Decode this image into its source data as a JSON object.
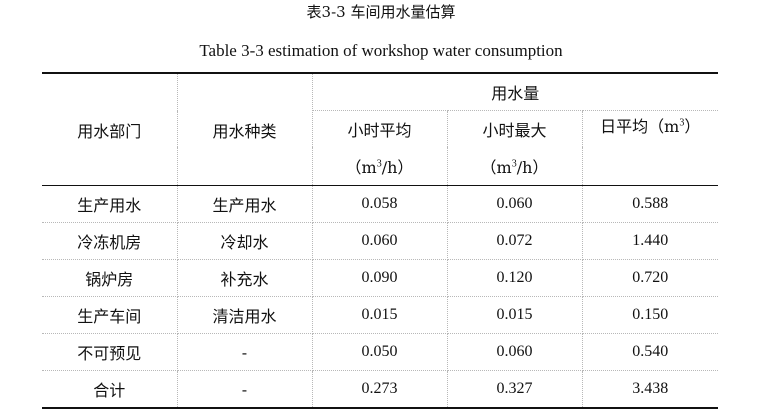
{
  "caption": {
    "chinese": "表3-3 车间用水量估算",
    "english": "Table 3-3 estimation of workshop water consumption"
  },
  "table": {
    "header": {
      "department": "用水部门",
      "water_type": "用水种类",
      "consumption_group": "用水量",
      "hourly_avg": "小时平均",
      "hourly_avg_unit_open": "（m",
      "hourly_avg_unit_sup": "3",
      "hourly_avg_unit_close": "/h）",
      "hourly_max": "小时最大",
      "hourly_max_unit_open": "（m",
      "hourly_max_unit_sup": "3",
      "hourly_max_unit_close": "/h）",
      "daily_avg": "日平均（m",
      "daily_avg_sup": "3",
      "daily_avg_close": "）"
    },
    "rows": [
      {
        "department": "生产用水",
        "water_type": "生产用水",
        "hourly_avg": "0.058",
        "hourly_max": "0.060",
        "daily_avg": "0.588"
      },
      {
        "department": "冷冻机房",
        "water_type": "冷却水",
        "hourly_avg": "0.060",
        "hourly_max": "0.072",
        "daily_avg": "1.440"
      },
      {
        "department": "锅炉房",
        "water_type": "补充水",
        "hourly_avg": "0.090",
        "hourly_max": "0.120",
        "daily_avg": "0.720"
      },
      {
        "department": "生产车间",
        "water_type": "清洁用水",
        "hourly_avg": "0.015",
        "hourly_max": "0.015",
        "daily_avg": "0.150"
      },
      {
        "department": "不可预见",
        "water_type": "-",
        "hourly_avg": "0.050",
        "hourly_max": "0.060",
        "daily_avg": "0.540"
      },
      {
        "department": "合计",
        "water_type": "-",
        "hourly_avg": "0.273",
        "hourly_max": "0.327",
        "daily_avg": "3.438"
      }
    ]
  }
}
